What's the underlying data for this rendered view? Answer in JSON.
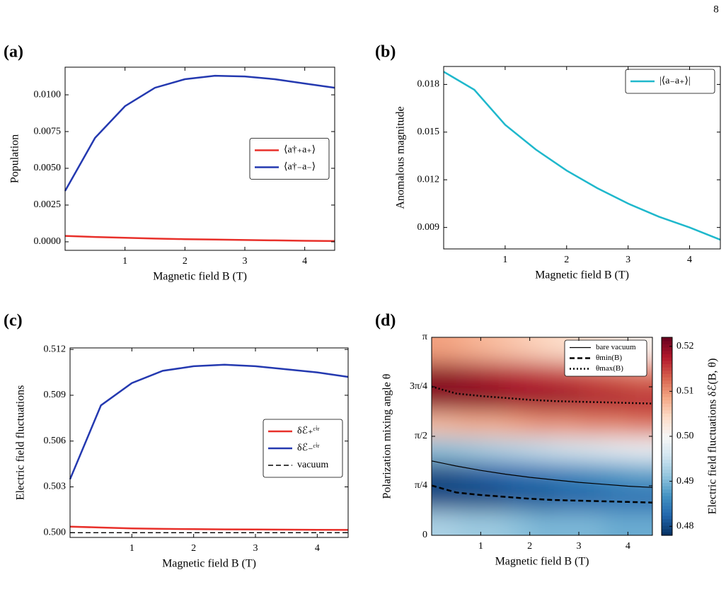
{
  "page_number": 8,
  "chart_data": [
    {
      "type": "line",
      "panel_label": "(a)",
      "xlabel": "Magnetic field B (T)",
      "ylabel": "Population",
      "x": [
        0,
        0.5,
        1,
        1.5,
        2,
        2.5,
        3,
        3.5,
        4,
        4.5
      ],
      "series": [
        {
          "name": "⟨a†₊a₊⟩",
          "color": "#e8302a",
          "dash": "solid",
          "values": [
            0.0004,
            0.00033,
            0.00027,
            0.00022,
            0.00018,
            0.00015,
            0.00012,
            0.0001,
            7e-05,
            5e-05
          ]
        },
        {
          "name": "⟨a†₋a₋⟩",
          "color": "#2439b0",
          "dash": "solid",
          "values": [
            0.00346,
            0.00707,
            0.00923,
            0.01048,
            0.01106,
            0.0113,
            0.01125,
            0.01106,
            0.01077,
            0.01048
          ]
        }
      ],
      "xlim": [
        0,
        4.5
      ],
      "ylim": [
        -0.00058,
        0.01188
      ],
      "xticks": [
        1,
        2,
        3,
        4
      ],
      "yticks": [
        {
          "value": 0,
          "label": "0.0000"
        },
        0.0025,
        {
          "value": 0.005,
          "label": "0.0050"
        },
        0.0075,
        {
          "value": 0.01,
          "label": "0.0100"
        }
      ],
      "legend": "center right"
    },
    {
      "type": "line",
      "panel_label": "(b)",
      "xlabel": "Magnetic field B (T)",
      "ylabel": "Anomalous magnitude",
      "x": [
        0,
        0.5,
        1,
        1.5,
        2,
        2.5,
        3,
        3.5,
        4,
        4.5
      ],
      "series": [
        {
          "name": "|⟨a₋a₊⟩|",
          "color": "#1fb8cc",
          "dash": "solid",
          "values": [
            0.0188,
            0.01766,
            0.01546,
            0.0139,
            0.01258,
            0.01147,
            0.0105,
            0.00968,
            0.009,
            0.00823
          ]
        }
      ],
      "xlim": [
        0,
        4.5
      ],
      "ylim": [
        0.00765,
        0.01913
      ],
      "xticks": [
        1,
        2,
        3,
        4
      ],
      "yticks": [
        0.009,
        0.012,
        0.015,
        0.018
      ],
      "legend": "upper right"
    },
    {
      "type": "line",
      "panel_label": "(c)",
      "xlabel": "Magnetic field B (T)",
      "ylabel": "Electric field fluctuations",
      "x": [
        0,
        0.5,
        1,
        1.5,
        2,
        2.5,
        3,
        3.5,
        4,
        4.5
      ],
      "series": [
        {
          "name": "δℰ₊ᶜⁱʳ",
          "color": "#e8302a",
          "dash": "solid",
          "values": [
            0.5004,
            0.50034,
            0.50028,
            0.50025,
            0.50023,
            0.50022,
            0.50021,
            0.5002,
            0.50019,
            0.50018
          ]
        },
        {
          "name": "δℰ₋ᶜⁱʳ",
          "color": "#2439b0",
          "dash": "solid",
          "values": [
            0.5035,
            0.50834,
            0.5098,
            0.5106,
            0.5109,
            0.511,
            0.5109,
            0.5107,
            0.5105,
            0.5102
          ]
        },
        {
          "name": "vacuum",
          "color": "#000000",
          "dash": "dashed",
          "values": [
            0.5,
            0.5,
            0.5,
            0.5,
            0.5,
            0.5,
            0.5,
            0.5,
            0.5,
            0.5
          ]
        }
      ],
      "xlim": [
        0,
        4.5
      ],
      "ylim": [
        0.49969,
        0.5121
      ],
      "xticks": [
        1,
        2,
        3,
        4
      ],
      "yticks": [
        {
          "value": 0.5,
          "label": "0.500"
        },
        0.503,
        0.506,
        0.509,
        0.512
      ],
      "legend": "center right"
    },
    {
      "type": "heatmap",
      "panel_label": "(d)",
      "xlabel": "Magnetic field B (T)",
      "ylabel": "Polarization mixing angle θ",
      "colorbar_label": "Electric field fluctuations δℰ(B, θ)",
      "x": [
        0.25,
        0.75,
        1.25,
        1.75,
        2.25,
        2.75,
        3.25,
        3.75,
        4.25
      ],
      "y": [
        0.196,
        0.589,
        0.982,
        1.374,
        1.767,
        2.16,
        2.553,
        2.945
      ],
      "values": [
        [
          0.493,
          0.492,
          0.492,
          0.491,
          0.49,
          0.49,
          0.49,
          0.489,
          0.489
        ],
        [
          0.48,
          0.48,
          0.48,
          0.481,
          0.481,
          0.482,
          0.482,
          0.483,
          0.483
        ],
        [
          0.48,
          0.481,
          0.482,
          0.483,
          0.484,
          0.485,
          0.486,
          0.487,
          0.488
        ],
        [
          0.491,
          0.492,
          0.493,
          0.494,
          0.495,
          0.496,
          0.497,
          0.498,
          0.499
        ],
        [
          0.507,
          0.508,
          0.508,
          0.509,
          0.51,
          0.51,
          0.511,
          0.511,
          0.512
        ],
        [
          0.52,
          0.52,
          0.52,
          0.519,
          0.519,
          0.519,
          0.518,
          0.518,
          0.517
        ],
        [
          0.52,
          0.519,
          0.518,
          0.517,
          0.516,
          0.515,
          0.514,
          0.513,
          0.512
        ],
        [
          0.509,
          0.508,
          0.507,
          0.506,
          0.505,
          0.504,
          0.503,
          0.502,
          0.501
        ]
      ],
      "colormap": [
        "#053061",
        "#2166ac",
        "#4393c3",
        "#92c5de",
        "#d1e5f0",
        "#f7f7f7",
        "#fddbc7",
        "#f4a582",
        "#d6604d",
        "#b2182b",
        "#67001f"
      ],
      "clim": [
        0.478,
        0.522
      ],
      "cticks": [
        0.48,
        0.49,
        {
          "value": 0.5,
          "label": "0.50"
        },
        0.51,
        0.52
      ],
      "series": [
        {
          "name": "bare vacuum",
          "color": "#000000",
          "dash": "solid",
          "x": [
            0,
            0.5,
            1,
            1.5,
            2,
            2.5,
            3,
            3.5,
            4,
            4.5
          ],
          "values": [
            1.18,
            1.1,
            1.03,
            0.97,
            0.92,
            0.88,
            0.84,
            0.81,
            0.78,
            0.76
          ]
        },
        {
          "name": "θmin(B)",
          "color": "#000000",
          "dash": "dashed",
          "x": [
            0,
            0.5,
            1,
            1.5,
            2,
            2.5,
            3,
            3.5,
            4,
            4.5
          ],
          "values": [
            0.79,
            0.68,
            0.64,
            0.61,
            0.58,
            0.56,
            0.55,
            0.54,
            0.53,
            0.52
          ]
        },
        {
          "name": "θmax(B)",
          "color": "#000000",
          "dash": "dotted",
          "x": [
            0,
            0.5,
            1,
            1.5,
            2,
            2.5,
            3,
            3.5,
            4,
            4.5
          ],
          "values": [
            2.36,
            2.25,
            2.21,
            2.18,
            2.15,
            2.13,
            2.12,
            2.11,
            2.1,
            2.09
          ]
        }
      ],
      "xlim": [
        0,
        4.5
      ],
      "ylim": [
        0,
        3.1416
      ],
      "xticks": [
        1,
        2,
        3,
        4
      ],
      "yticks": [
        {
          "value": 0,
          "label": "0"
        },
        {
          "value": 0.7854,
          "label": "π/4"
        },
        {
          "value": 1.5708,
          "label": "π/2"
        },
        {
          "value": 2.3562,
          "label": "3π/4"
        },
        {
          "value": 3.1416,
          "label": "π"
        }
      ],
      "legend": "upper right"
    }
  ]
}
